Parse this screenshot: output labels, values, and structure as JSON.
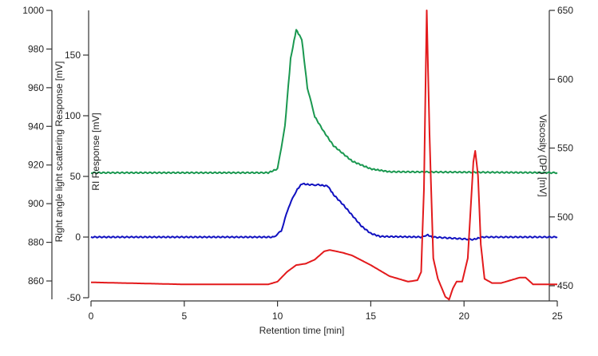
{
  "chart_data": {
    "type": "line",
    "title": "",
    "xlabel": "Retention time [min]",
    "xlim": [
      0,
      25
    ],
    "xticks": [
      0,
      5,
      10,
      15,
      20,
      25
    ],
    "axes": {
      "rals": {
        "label": "Right angle light scattering Response [mV]",
        "ylim": [
          855,
          1000
        ],
        "ticks": [
          860,
          880,
          900,
          920,
          940,
          960,
          980,
          1000
        ]
      },
      "ri": {
        "label": "RI Response [mV]",
        "ylim": [
          -50,
          165
        ],
        "ticks": [
          -50,
          0,
          50,
          100,
          150
        ]
      },
      "visc": {
        "label": "Viscosity (DP) [mV]",
        "ylim": [
          443,
          650
        ],
        "ticks": [
          450,
          500,
          550,
          600,
          650
        ]
      }
    },
    "grid": false,
    "series": [
      {
        "name": "Right angle light scattering",
        "axis": "rals",
        "color": "#1a9850",
        "x": [
          0,
          9.5,
          10,
          10.4,
          10.7,
          11,
          11.3,
          11.6,
          12,
          12.5,
          13,
          14,
          15,
          16,
          25
        ],
        "y": [
          916,
          916,
          918,
          940,
          975,
          990,
          985,
          960,
          945,
          937,
          930,
          922,
          918,
          916.5,
          916
        ]
      },
      {
        "name": "RI",
        "axis": "ri",
        "color": "#1010c0",
        "x": [
          0,
          9.8,
          10.2,
          10.6,
          11,
          11.3,
          11.8,
          12.2,
          12.7,
          13,
          13.5,
          14,
          14.5,
          15,
          15.5,
          17.8,
          18,
          18.3,
          20.5,
          21,
          25
        ],
        "y": [
          0,
          0,
          5,
          25,
          38,
          44,
          43,
          43,
          42,
          35,
          27,
          18,
          9,
          3,
          0.5,
          0,
          2,
          0,
          -2,
          0,
          0
        ]
      },
      {
        "name": "Viscosity (DP)",
        "axis": "visc",
        "color": "#e31a1c",
        "x": [
          0,
          5,
          9.5,
          10,
          10.5,
          11,
          11.5,
          12,
          12.5,
          12.8,
          13.5,
          14,
          15,
          16,
          17,
          17.5,
          17.7,
          17.85,
          18,
          18.15,
          18.35,
          18.6,
          19,
          19.2,
          19.4,
          19.6,
          19.9,
          20.2,
          20.5,
          20.6,
          20.75,
          20.9,
          21.1,
          21.5,
          22,
          22.5,
          23,
          23.3,
          23.7,
          24.2,
          25
        ],
        "y": [
          452.5,
          451,
          451,
          453,
          460,
          465,
          466,
          469,
          475,
          476,
          474,
          472,
          465,
          457,
          453,
          454,
          460,
          520,
          650,
          560,
          470,
          455,
          442,
          440,
          448,
          453,
          453,
          470,
          540,
          548,
          530,
          480,
          455,
          452,
          452,
          454,
          456,
          456,
          451,
          451,
          451
        ]
      }
    ]
  }
}
